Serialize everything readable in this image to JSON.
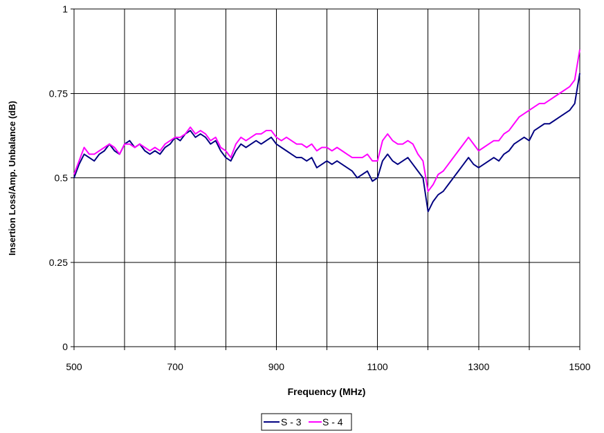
{
  "chart_data": {
    "type": "line",
    "title": "",
    "xlabel": "Frequency (MHz)",
    "ylabel": "Insertion Loss/Amp. Unbalance (dB)",
    "xlim": [
      500,
      1500
    ],
    "ylim": [
      0,
      1
    ],
    "xticks": [
      500,
      700,
      900,
      1100,
      1300,
      1500
    ],
    "xtick_labels": [
      "500",
      "700",
      "900",
      "1100",
      "1300",
      "1500"
    ],
    "yticks": [
      0,
      0.25,
      0.5,
      0.75,
      1
    ],
    "ytick_labels": [
      "0",
      "0.25",
      "0.5",
      "0.75",
      "1"
    ],
    "x_gridlines": [
      500,
      600,
      700,
      800,
      900,
      1000,
      1100,
      1200,
      1300,
      1400,
      1500
    ],
    "grid": true,
    "legend_position": "bottom-center",
    "series": [
      {
        "name": "S - 3",
        "color": "#000080",
        "x": [
          500,
          510,
          520,
          530,
          540,
          550,
          560,
          570,
          580,
          590,
          600,
          610,
          620,
          630,
          640,
          650,
          660,
          670,
          680,
          690,
          700,
          710,
          720,
          730,
          740,
          750,
          760,
          770,
          780,
          790,
          800,
          810,
          820,
          830,
          840,
          850,
          860,
          870,
          880,
          890,
          900,
          910,
          920,
          930,
          940,
          950,
          960,
          970,
          980,
          990,
          1000,
          1010,
          1020,
          1030,
          1040,
          1050,
          1060,
          1070,
          1080,
          1090,
          1100,
          1110,
          1120,
          1130,
          1140,
          1150,
          1160,
          1170,
          1180,
          1190,
          1200,
          1210,
          1220,
          1230,
          1240,
          1250,
          1260,
          1270,
          1280,
          1290,
          1300,
          1310,
          1320,
          1330,
          1340,
          1350,
          1360,
          1370,
          1380,
          1390,
          1400,
          1410,
          1420,
          1430,
          1440,
          1450,
          1460,
          1470,
          1480,
          1490,
          1500
        ],
        "values": [
          0.5,
          0.54,
          0.57,
          0.56,
          0.55,
          0.57,
          0.58,
          0.6,
          0.58,
          0.57,
          0.6,
          0.61,
          0.59,
          0.6,
          0.58,
          0.57,
          0.58,
          0.57,
          0.59,
          0.6,
          0.62,
          0.61,
          0.63,
          0.64,
          0.62,
          0.63,
          0.62,
          0.6,
          0.61,
          0.58,
          0.56,
          0.55,
          0.58,
          0.6,
          0.59,
          0.6,
          0.61,
          0.6,
          0.61,
          0.62,
          0.6,
          0.59,
          0.58,
          0.57,
          0.56,
          0.56,
          0.55,
          0.56,
          0.53,
          0.54,
          0.55,
          0.54,
          0.55,
          0.54,
          0.53,
          0.52,
          0.5,
          0.51,
          0.52,
          0.49,
          0.5,
          0.55,
          0.57,
          0.55,
          0.54,
          0.55,
          0.56,
          0.54,
          0.52,
          0.5,
          0.4,
          0.43,
          0.45,
          0.46,
          0.48,
          0.5,
          0.52,
          0.54,
          0.56,
          0.54,
          0.53,
          0.54,
          0.55,
          0.56,
          0.55,
          0.57,
          0.58,
          0.6,
          0.61,
          0.62,
          0.61,
          0.64,
          0.65,
          0.66,
          0.66,
          0.67,
          0.68,
          0.69,
          0.7,
          0.72,
          0.81
        ]
      },
      {
        "name": "S - 4",
        "color": "#FF00FF",
        "x": [
          500,
          510,
          520,
          530,
          540,
          550,
          560,
          570,
          580,
          590,
          600,
          610,
          620,
          630,
          640,
          650,
          660,
          670,
          680,
          690,
          700,
          710,
          720,
          730,
          740,
          750,
          760,
          770,
          780,
          790,
          800,
          810,
          820,
          830,
          840,
          850,
          860,
          870,
          880,
          890,
          900,
          910,
          920,
          930,
          940,
          950,
          960,
          970,
          980,
          990,
          1000,
          1010,
          1020,
          1030,
          1040,
          1050,
          1060,
          1070,
          1080,
          1090,
          1100,
          1110,
          1120,
          1130,
          1140,
          1150,
          1160,
          1170,
          1180,
          1190,
          1200,
          1210,
          1220,
          1230,
          1240,
          1250,
          1260,
          1270,
          1280,
          1290,
          1300,
          1310,
          1320,
          1330,
          1340,
          1350,
          1360,
          1370,
          1380,
          1390,
          1400,
          1410,
          1420,
          1430,
          1440,
          1450,
          1460,
          1470,
          1480,
          1490,
          1500
        ],
        "values": [
          0.51,
          0.55,
          0.59,
          0.57,
          0.57,
          0.58,
          0.59,
          0.6,
          0.59,
          0.57,
          0.6,
          0.6,
          0.59,
          0.6,
          0.59,
          0.58,
          0.59,
          0.58,
          0.6,
          0.61,
          0.62,
          0.62,
          0.63,
          0.65,
          0.63,
          0.64,
          0.63,
          0.61,
          0.62,
          0.59,
          0.58,
          0.56,
          0.6,
          0.62,
          0.61,
          0.62,
          0.63,
          0.63,
          0.64,
          0.64,
          0.62,
          0.61,
          0.62,
          0.61,
          0.6,
          0.6,
          0.59,
          0.6,
          0.58,
          0.59,
          0.59,
          0.58,
          0.59,
          0.58,
          0.57,
          0.56,
          0.56,
          0.56,
          0.57,
          0.55,
          0.55,
          0.61,
          0.63,
          0.61,
          0.6,
          0.6,
          0.61,
          0.6,
          0.57,
          0.55,
          0.46,
          0.48,
          0.51,
          0.52,
          0.54,
          0.56,
          0.58,
          0.6,
          0.62,
          0.6,
          0.58,
          0.59,
          0.6,
          0.61,
          0.61,
          0.63,
          0.64,
          0.66,
          0.68,
          0.69,
          0.7,
          0.71,
          0.72,
          0.72,
          0.73,
          0.74,
          0.75,
          0.76,
          0.77,
          0.79,
          0.88
        ]
      }
    ]
  }
}
